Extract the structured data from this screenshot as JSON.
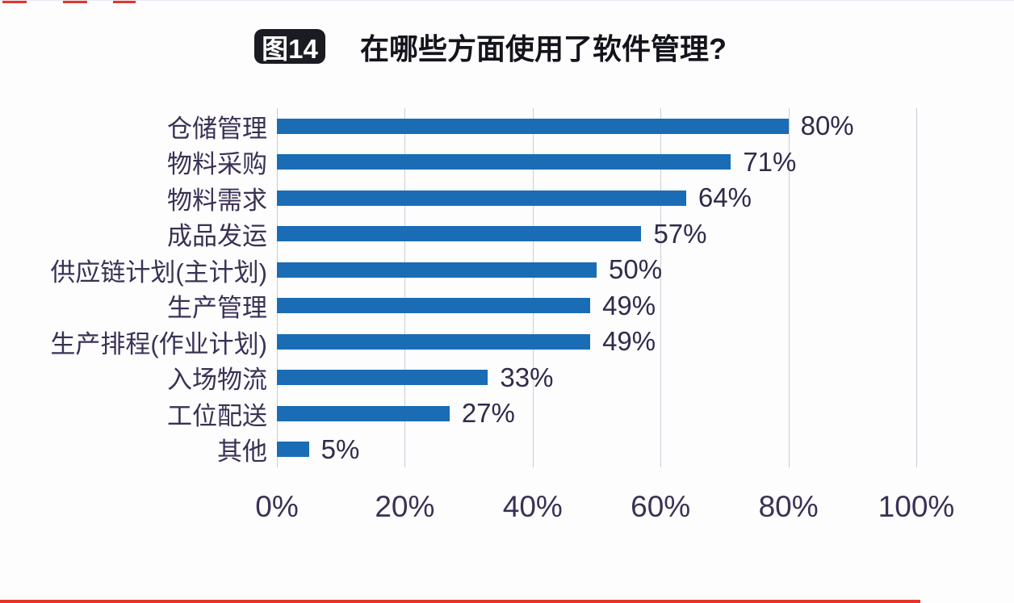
{
  "page": {
    "background": "#fdfdfe",
    "title_badge": "图14",
    "title": "在哪些方面使用了软件管理?"
  },
  "chart_data": {
    "type": "bar",
    "orientation": "horizontal",
    "title": "在哪些方面使用了软件管理?",
    "categories": [
      "仓储管理",
      "物料采购",
      "物料需求",
      "成品发运",
      "供应链计划(主计划)",
      "生产管理",
      "生产排程(作业计划)",
      "入场物流",
      "工位配送",
      "其他"
    ],
    "values": [
      80,
      71,
      64,
      57,
      50,
      49,
      49,
      33,
      27,
      5
    ],
    "value_labels": [
      "80%",
      "71%",
      "64%",
      "57%",
      "50%",
      "49%",
      "49%",
      "33%",
      "27%",
      "5%"
    ],
    "x_ticks": [
      "0%",
      "20%",
      "40%",
      "60%",
      "80%",
      "100%"
    ],
    "xlim": [
      0,
      100
    ],
    "grid": true,
    "legend": "none",
    "bar_color": "#1a6cb5",
    "grid_color": "#c8cdd8",
    "category_label_color": "#3a3154",
    "value_label_color": "#322a4a",
    "axis_tick_color": "#3a3154",
    "title_color": "#14141c",
    "badge_bg_color": "#1b1b23",
    "badge_text_color": "#ffffff"
  },
  "decorations": {
    "top_dash_color": "#e5352b",
    "bottom_line_color": "#e5352b"
  }
}
